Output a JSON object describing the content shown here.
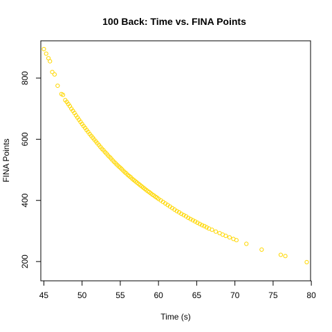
{
  "chart_data": {
    "type": "scatter",
    "title": "100 Back: Time vs. FINA Points",
    "xlabel": "Time (s)",
    "ylabel": "FINA Points",
    "xlim": [
      44.6,
      79.9
    ],
    "ylim": [
      137,
      922
    ],
    "xticks": [
      45,
      50,
      55,
      60,
      65,
      70,
      75,
      80
    ],
    "yticks": [
      200,
      400,
      600,
      800
    ],
    "grid": false,
    "point_color": "#FFD700",
    "series": [
      {
        "points": [
          [
            45.0,
            895
          ],
          [
            45.3,
            880
          ],
          [
            45.6,
            865
          ],
          [
            45.8,
            855
          ],
          [
            46.1,
            820
          ],
          [
            46.4,
            812
          ],
          [
            46.8,
            775
          ],
          [
            47.3,
            748
          ],
          [
            47.5,
            745
          ],
          [
            47.8,
            728
          ],
          [
            48.0,
            722
          ],
          [
            48.2,
            715
          ],
          [
            48.4,
            708
          ],
          [
            48.6,
            700
          ],
          [
            48.8,
            693
          ],
          [
            49.0,
            686
          ],
          [
            49.2,
            678
          ],
          [
            49.4,
            671
          ],
          [
            49.6,
            664
          ],
          [
            49.8,
            657
          ],
          [
            50.0,
            650
          ],
          [
            50.2,
            643
          ],
          [
            50.4,
            637
          ],
          [
            50.6,
            630
          ],
          [
            50.8,
            624
          ],
          [
            51.0,
            617
          ],
          [
            51.2,
            611
          ],
          [
            51.4,
            605
          ],
          [
            51.6,
            599
          ],
          [
            51.8,
            593
          ],
          [
            52.0,
            587
          ],
          [
            52.2,
            581
          ],
          [
            52.4,
            575
          ],
          [
            52.6,
            569
          ],
          [
            52.8,
            564
          ],
          [
            53.0,
            558
          ],
          [
            53.2,
            553
          ],
          [
            53.4,
            547
          ],
          [
            53.6,
            542
          ],
          [
            53.8,
            537
          ],
          [
            54.0,
            531
          ],
          [
            54.2,
            526
          ],
          [
            54.4,
            521
          ],
          [
            54.6,
            516
          ],
          [
            54.8,
            511
          ],
          [
            55.0,
            507
          ],
          [
            55.2,
            502
          ],
          [
            55.4,
            497
          ],
          [
            55.6,
            492
          ],
          [
            55.8,
            488
          ],
          [
            56.0,
            483
          ],
          [
            56.2,
            479
          ],
          [
            56.4,
            475
          ],
          [
            56.6,
            470
          ],
          [
            56.8,
            466
          ],
          [
            57.0,
            462
          ],
          [
            57.2,
            458
          ],
          [
            57.4,
            454
          ],
          [
            57.6,
            450
          ],
          [
            57.8,
            446
          ],
          [
            58.0,
            442
          ],
          [
            58.2,
            438
          ],
          [
            58.4,
            434
          ],
          [
            58.6,
            430
          ],
          [
            58.8,
            427
          ],
          [
            59.0,
            423
          ],
          [
            59.2,
            419
          ],
          [
            59.4,
            416
          ],
          [
            59.6,
            412
          ],
          [
            59.8,
            409
          ],
          [
            60.0,
            405
          ],
          [
            60.3,
            400
          ],
          [
            60.6,
            395
          ],
          [
            60.9,
            390
          ],
          [
            61.2,
            385
          ],
          [
            61.5,
            380
          ],
          [
            61.8,
            375
          ],
          [
            62.1,
            370
          ],
          [
            62.4,
            365
          ],
          [
            62.7,
            361
          ],
          [
            63.0,
            356
          ],
          [
            63.3,
            352
          ],
          [
            63.6,
            348
          ],
          [
            63.9,
            343
          ],
          [
            64.2,
            339
          ],
          [
            64.5,
            335
          ],
          [
            64.8,
            331
          ],
          [
            65.1,
            327
          ],
          [
            65.4,
            323
          ],
          [
            65.7,
            319
          ],
          [
            66.0,
            316
          ],
          [
            66.3,
            312
          ],
          [
            66.6,
            308
          ],
          [
            67.0,
            304
          ],
          [
            67.5,
            298
          ],
          [
            68.0,
            293
          ],
          [
            68.4,
            288
          ],
          [
            68.8,
            284
          ],
          [
            69.3,
            279
          ],
          [
            69.8,
            274
          ],
          [
            70.2,
            270
          ],
          [
            71.5,
            258
          ],
          [
            73.5,
            239
          ],
          [
            76.0,
            222
          ],
          [
            76.6,
            218
          ],
          [
            79.4,
            198
          ]
        ]
      }
    ]
  }
}
